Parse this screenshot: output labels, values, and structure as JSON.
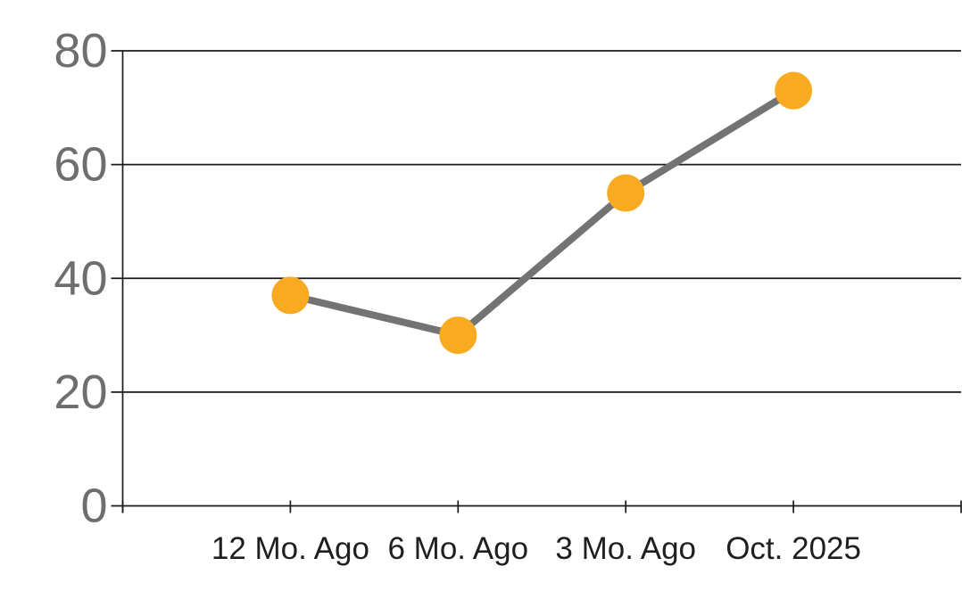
{
  "chart_data": {
    "type": "line",
    "title": "",
    "xlabel": "",
    "ylabel": "",
    "categories": [
      "12 Mo. Ago",
      "6 Mo. Ago",
      "3 Mo. Ago",
      "Oct. 2025"
    ],
    "values": [
      37,
      30,
      55,
      73
    ],
    "ylim": [
      0,
      80
    ],
    "yticks": [
      0,
      20,
      40,
      60,
      80
    ],
    "grid": true,
    "legend": false,
    "colors": {
      "marker": "#F8AB21",
      "line": "#737373",
      "axis": "#1a1a1a",
      "gridline": "#1a1a1a",
      "ytick_text": "#6e6e6e",
      "xtick_text": "#1f1f1f",
      "background": "#ffffff"
    }
  }
}
